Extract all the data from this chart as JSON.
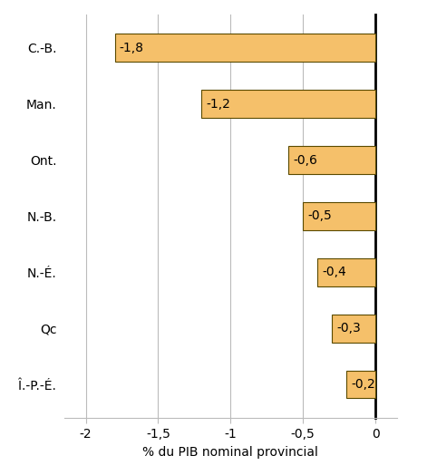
{
  "categories": [
    "C.-B.",
    "Man.",
    "Ont.",
    "N.-B.",
    "N.-É.",
    "Qc",
    "Î.-P.-É."
  ],
  "values": [
    -1.8,
    -1.2,
    -0.6,
    -0.5,
    -0.4,
    -0.3,
    -0.2
  ],
  "labels": [
    "-1,8",
    "-1,2",
    "-0,6",
    "-0,5",
    "-0,4",
    "-0,3",
    "-0,2"
  ],
  "bar_color": "#F5C06A",
  "bar_edge_color": "#5A4A00",
  "xlabel": "% du PIB nominal provincial",
  "xlim": [
    -2.15,
    0.15
  ],
  "xticks": [
    -2.0,
    -1.5,
    -1.0,
    -0.5,
    0.0
  ],
  "xtick_labels": [
    "-2",
    "-1,5",
    "-1",
    "-0,5",
    "0"
  ],
  "grid_color": "#BBBBBB",
  "background_color": "#FFFFFF",
  "label_fontsize": 10,
  "xlabel_fontsize": 10,
  "tick_fontsize": 10,
  "ytick_fontsize": 11,
  "bar_height": 0.5
}
